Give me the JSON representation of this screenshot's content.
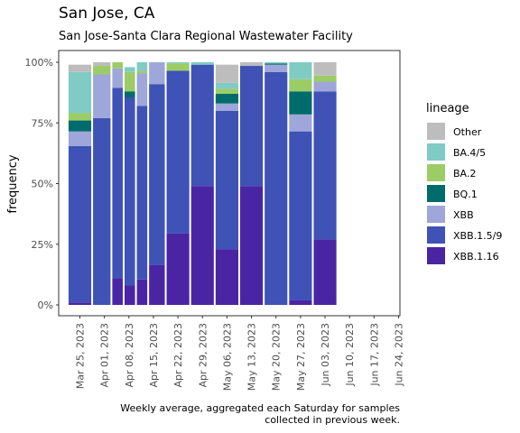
{
  "chart_data": {
    "type": "bar",
    "stacked": true,
    "title": "San Jose, CA",
    "subtitle": "San Jose-Santa Clara Regional Wastewater Facility",
    "xlabel": "",
    "ylabel": "frequency",
    "caption_lines": [
      "Weekly average, aggregated each Saturday for samples",
      "collected in previous week."
    ],
    "legend_title": "lineage",
    "legend_position": "right",
    "ylim": [
      0,
      1
    ],
    "yticks": [
      "0%",
      "25%",
      "50%",
      "75%",
      "100%"
    ],
    "xticks": [
      "Mar 25, 2023",
      "Apr 01, 2023",
      "Apr 08, 2023",
      "Apr 15, 2023",
      "Apr 22, 2023",
      "Apr 29, 2023",
      "May 06, 2023",
      "May 13, 2023",
      "May 20, 2023",
      "May 27, 2023",
      "Jun 03, 2023",
      "Jun 10, 2023",
      "Jun 17, 2023",
      "Jun 24, 2023"
    ],
    "categories": [
      "Mar 25, 2023",
      "Apr 01, 2023",
      "Apr 05, 2023",
      "Apr 08, 2023",
      "Apr 12, 2023",
      "Apr 15, 2023",
      "Apr 22, 2023",
      "Apr 29, 2023",
      "May 06, 2023",
      "May 13, 2023",
      "May 20, 2023",
      "May 27, 2023",
      "Jun 03, 2023",
      "Jun 10, 2023",
      "Jun 17, 2023"
    ],
    "series": [
      {
        "name": "XBB.1.16",
        "color": "#4a25a3",
        "values": [
          0.01,
          0.0,
          0.11,
          0.08,
          0.105,
          0.165,
          0.295,
          0.49,
          0.23,
          0.49,
          0.0,
          0.02,
          0.27,
          0.0,
          0.0
        ]
      },
      {
        "name": "XBB.1.5/9",
        "color": "#3f52b5",
        "values": [
          0.645,
          0.77,
          0.785,
          0.775,
          0.715,
          0.745,
          0.67,
          0.5,
          0.57,
          0.495,
          0.96,
          0.695,
          0.61,
          0.0,
          0.0
        ]
      },
      {
        "name": "XBB",
        "color": "#9fa6d9",
        "values": [
          0.06,
          0.18,
          0.08,
          0.0,
          0.135,
          0.09,
          0.0,
          0.0,
          0.03,
          0.0,
          0.03,
          0.07,
          0.04,
          0.0,
          0.0
        ]
      },
      {
        "name": "BQ.1",
        "color": "#006b6b",
        "values": [
          0.045,
          0.0,
          0.0,
          0.025,
          0.0,
          0.0,
          0.0,
          0.0,
          0.04,
          0.0,
          0.005,
          0.095,
          0.0,
          0.0,
          0.0
        ]
      },
      {
        "name": "BA.2",
        "color": "#9ccc65",
        "values": [
          0.03,
          0.035,
          0.025,
          0.08,
          0.01,
          0.0,
          0.03,
          0.0,
          0.02,
          0.0,
          0.0,
          0.05,
          0.025,
          0.0,
          0.0
        ]
      },
      {
        "name": "BA.4/5",
        "color": "#80cbc4",
        "values": [
          0.17,
          0.0,
          0.0,
          0.02,
          0.035,
          0.0,
          0.005,
          0.01,
          0.025,
          0.0,
          0.005,
          0.07,
          0.0,
          0.0,
          0.0
        ]
      },
      {
        "name": "Other",
        "color": "#bdbdbd",
        "values": [
          0.03,
          0.015,
          0.0,
          0.0,
          0.0,
          0.0,
          0.0,
          0.0,
          0.075,
          0.015,
          0.0,
          0.0,
          0.055,
          0.0,
          0.0
        ]
      }
    ],
    "legend_order": [
      "Other",
      "BA.4/5",
      "BA.2",
      "BQ.1",
      "XBB",
      "XBB.1.5/9",
      "XBB.1.16"
    ]
  }
}
